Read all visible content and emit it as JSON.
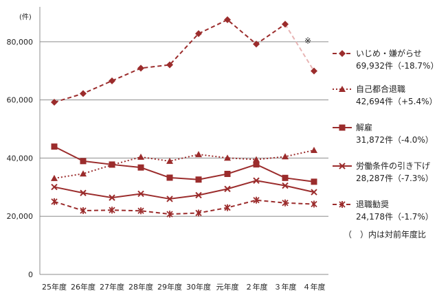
{
  "chart_data": {
    "type": "line",
    "unit_label": "(件)",
    "categories": [
      "25年度",
      "26年度",
      "27年度",
      "28年度",
      "29年度",
      "30年度",
      "元年度",
      "２年度",
      "３年度",
      "４年度"
    ],
    "ylim": [
      0,
      92000
    ],
    "yticks": [
      {
        "value": 0,
        "label": "0"
      },
      {
        "value": 20000,
        "label": "20,000"
      },
      {
        "value": 40000,
        "label": "40,000"
      },
      {
        "value": 60000,
        "label": "60,000"
      },
      {
        "value": 80000,
        "label": "80,000"
      }
    ],
    "grid": true,
    "legend_position": "right",
    "series": [
      {
        "name": "いじめ・嫌がらせ",
        "detail": "69,932件（-18.7%）",
        "color": "#9b2c2c",
        "dash": "6,4",
        "marker": "diamond",
        "values": [
          59197,
          62191,
          66566,
          70917,
          72067,
          82797,
          87570,
          79190,
          86034,
          69932
        ],
        "break_before_last": true
      },
      {
        "name": "自己都合退職",
        "detail": "42,694件（+5.4%）",
        "color": "#9b2c2c",
        "dash": "2,3",
        "marker": "triangle",
        "values": [
          33049,
          34626,
          37648,
          40364,
          38954,
          41258,
          40051,
          39498,
          40501,
          42694
        ]
      },
      {
        "name": "解雇",
        "detail": "31,872件（-4.0%）",
        "color": "#9b2c2c",
        "dash": "",
        "marker": "square",
        "values": [
          43956,
          38966,
          37787,
          36760,
          33269,
          32614,
          34561,
          37826,
          33189,
          31872
        ]
      },
      {
        "name": "労働条件の引き下げ",
        "detail": "28,287件（-7.3%）",
        "color": "#9b2c2c",
        "dash": "",
        "marker": "x",
        "values": [
          30067,
          28015,
          26392,
          27723,
          25967,
          27249,
          29403,
          32262,
          30524,
          28287
        ]
      },
      {
        "name": "退職勧奨",
        "detail": "24,178件（-1.7%）",
        "color": "#9b2c2c",
        "dash": "6,4",
        "marker": "asterisk",
        "values": [
          25041,
          21928,
          22110,
          21873,
          20736,
          21125,
          22954,
          25542,
          24582,
          24178
        ]
      }
    ],
    "annotations": {
      "asterisk_note": "※",
      "footnote": "（　）内は対前年度比"
    }
  }
}
